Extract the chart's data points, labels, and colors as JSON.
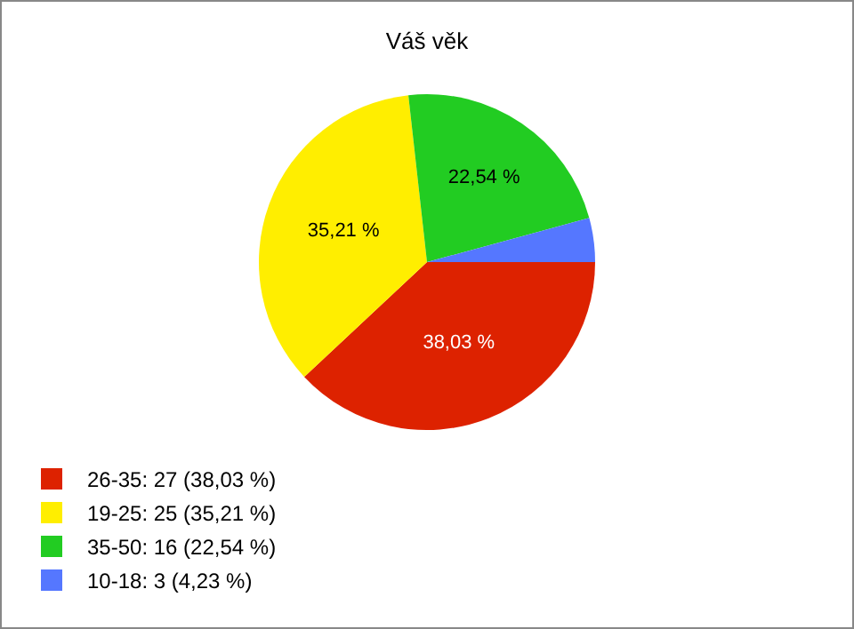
{
  "chart_data": {
    "type": "pie",
    "title": "Váš věk",
    "categories": [
      "26-35: 27 (38,03 %)",
      "19-25: 25 (35,21 %)",
      "35-50: 16 (22,54 %)",
      "10-18: 3 (4,23 %)"
    ],
    "values": [
      38.03,
      35.21,
      22.54,
      4.23
    ],
    "colors": [
      "#dd2200",
      "#ffee00",
      "#22cc22",
      "#5577ff"
    ],
    "value_labels": [
      "38,03 %",
      "35,21 %",
      "22,54 %",
      null
    ],
    "legend": "bottom left"
  }
}
